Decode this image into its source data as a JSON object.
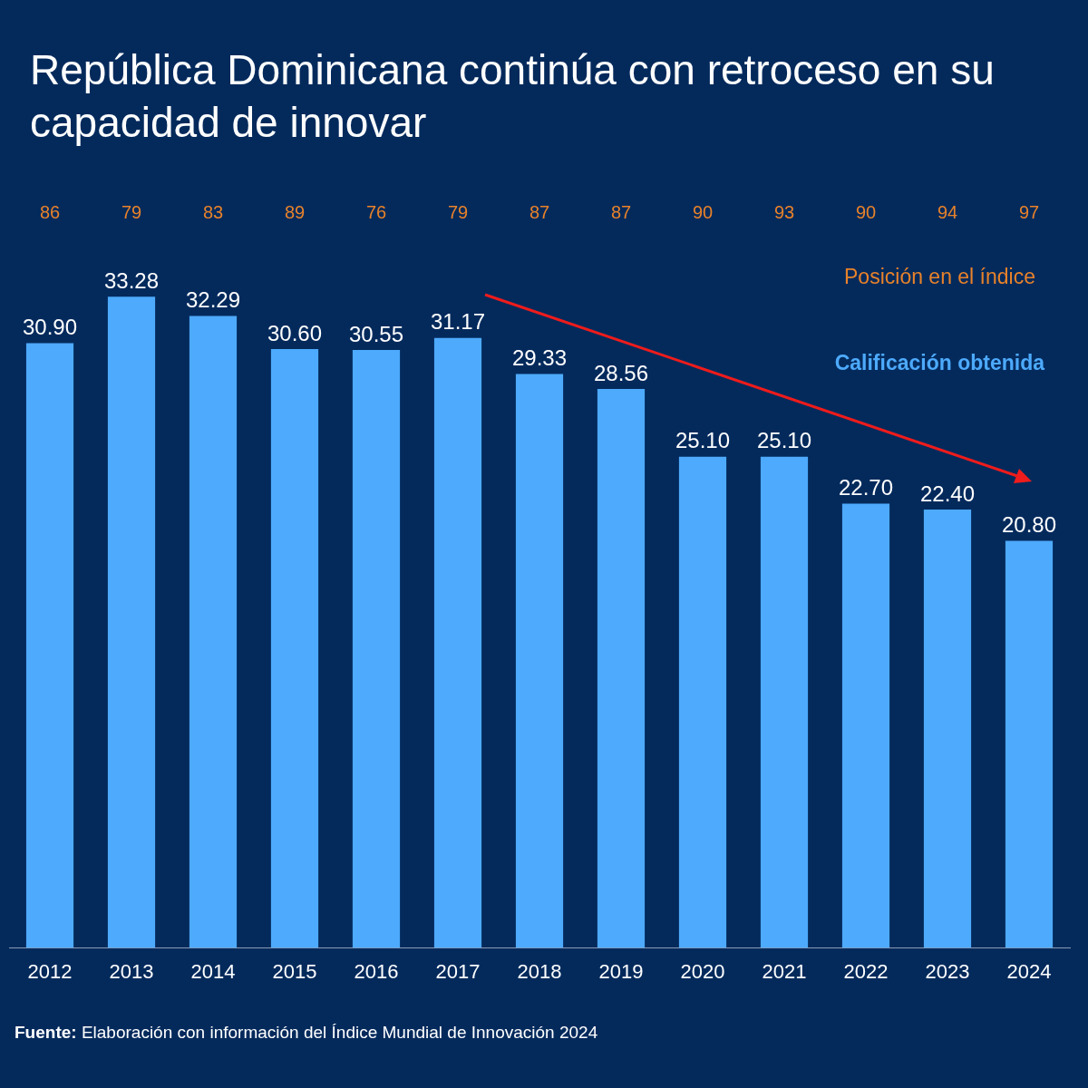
{
  "chart_data": {
    "type": "bar",
    "title": "República Dominicana continúa con retroceso en su capacidad de innovar",
    "categories": [
      "2012",
      "2013",
      "2014",
      "2015",
      "2016",
      "2017",
      "2018",
      "2019",
      "2020",
      "2021",
      "2022",
      "2023",
      "2024"
    ],
    "series": [
      {
        "name": "Calificación obtenida",
        "color": "#4daafc",
        "values": [
          30.9,
          33.28,
          32.29,
          30.6,
          30.55,
          31.17,
          29.33,
          28.56,
          25.1,
          25.1,
          22.7,
          22.4,
          20.8
        ],
        "value_labels": [
          "30.90",
          "33.28",
          "32.29",
          "30.60",
          "30.55",
          "31.17",
          "29.33",
          "28.56",
          "25.10",
          "25.10",
          "22.70",
          "22.40",
          "20.80"
        ]
      }
    ],
    "tick_labels": "x",
    "grid": false,
    "legend": "top right",
    "annotations": [
      "86",
      "79",
      "83",
      "89",
      "76",
      "79",
      "87",
      "87",
      "90",
      "93",
      "90",
      "94",
      "97",
      "Posición en el índice",
      "Fuente: Elaboración con información del Índice Mundial de Innovación 2024"
    ]
  }
}
